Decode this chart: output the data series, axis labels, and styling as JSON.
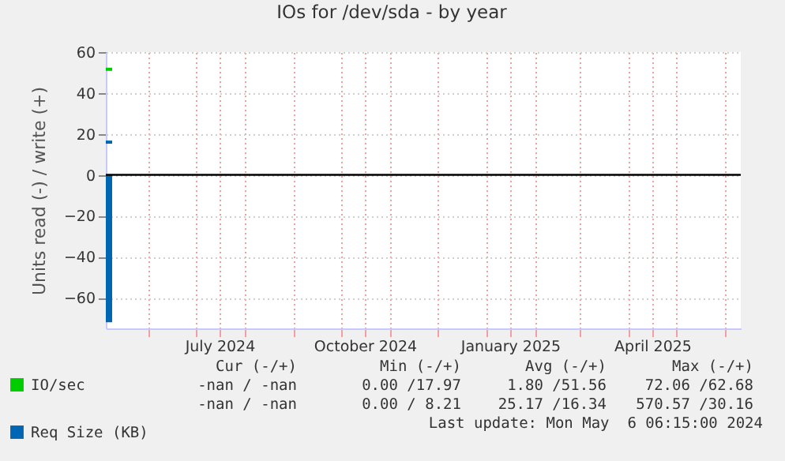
{
  "chart_data": {
    "type": "line",
    "title": "IOs for /dev/sda - by year",
    "ylabel": "Units read (-) / write (+)",
    "series": [
      {
        "name": "IO/sec",
        "color": "#00cc00",
        "x": [
          "2024-05-05",
          "2024-05-09"
        ],
        "values": [
          51.6,
          51.6
        ]
      },
      {
        "name": "Req Size (KB)",
        "color": "#0066b3",
        "x": [
          "2024-05-05",
          "2024-05-09"
        ],
        "values": [
          16,
          16
        ]
      },
      {
        "type": "area",
        "color": "#0066b3",
        "x": [
          "2024-05-05",
          "2024-05-09"
        ],
        "values": [
          -72,
          -72
        ]
      }
    ],
    "xlim": [
      "2024-05-05",
      "2025-06-11"
    ],
    "xticks": [
      {
        "value": "2024-06-01",
        "label": null
      },
      {
        "value": "2024-07-01",
        "label": null
      },
      {
        "value": "2024-07-16",
        "label": "July 2024"
      },
      {
        "value": "2024-08-01",
        "label": null
      },
      {
        "value": "2024-09-01",
        "label": null
      },
      {
        "value": "2024-10-01",
        "label": null
      },
      {
        "value": "2024-10-16",
        "label": "October 2024"
      },
      {
        "value": "2024-11-01",
        "label": null
      },
      {
        "value": "2024-12-01",
        "label": null
      },
      {
        "value": "2025-01-01",
        "label": null
      },
      {
        "value": "2025-01-16",
        "label": "January 2025"
      },
      {
        "value": "2025-02-01",
        "label": null
      },
      {
        "value": "2025-03-01",
        "label": null
      },
      {
        "value": "2025-04-01",
        "label": null
      },
      {
        "value": "2025-04-16",
        "label": "April 2025"
      },
      {
        "value": "2025-05-01",
        "label": null
      },
      {
        "value": "2025-06-01",
        "label": null
      }
    ],
    "ylim": [
      -75,
      60
    ],
    "yticks": [
      -60,
      -40,
      -20,
      0,
      20,
      40,
      60
    ],
    "grid": true,
    "legend": "bottom left",
    "ref_lines": [
      {
        "axis": "y",
        "value": 0,
        "color": "#000000"
      }
    ],
    "annotations": [
      "Cur (-/+)",
      "Min (-/+)",
      "Avg (-/+)",
      "Max (-/+)",
      "-nan / -nan",
      "0.00 /17.97",
      "1.80 /51.56",
      "72.06 /62.68",
      "-nan / -nan",
      "0.00 / 8.21",
      "25.17 /16.34",
      "570.57 /30.16",
      "Last update: Mon May  6 06:15:00 2024"
    ]
  }
}
